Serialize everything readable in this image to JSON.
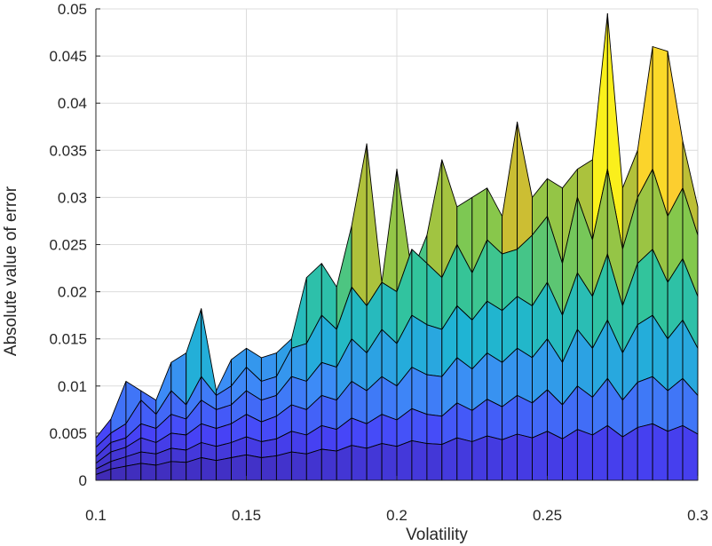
{
  "chart_data": {
    "type": "surface",
    "title": "",
    "xlabel": "Volatility",
    "ylabel": "Absolute value of error",
    "xlim": [
      0.1,
      0.3
    ],
    "ylim": [
      0,
      0.05
    ],
    "x_ticks": [
      0.1,
      0.15,
      0.2,
      0.25,
      0.3
    ],
    "x_tick_labels": [
      "0.1",
      "0.15",
      "0.2",
      "0.25",
      "0.3"
    ],
    "y_ticks": [
      0,
      0.005,
      0.01,
      0.015,
      0.02,
      0.025,
      0.03,
      0.035,
      0.04,
      0.045,
      0.05
    ],
    "y_tick_labels": [
      "0",
      "0.005",
      "0.01",
      "0.015",
      "0.02",
      "0.025",
      "0.03",
      "0.035",
      "0.04",
      "0.045",
      "0.05"
    ],
    "grid": true,
    "colormap": [
      "#3e26a8",
      "#4743f8",
      "#3d8bf7",
      "#1fb4d4",
      "#32c49b",
      "#83c84d",
      "#c6be32",
      "#fdbb3a",
      "#f9fb15"
    ],
    "series": [
      {
        "x": [
          0.1,
          0.105,
          0.11,
          0.115,
          0.12,
          0.125,
          0.13,
          0.135,
          0.14,
          0.145,
          0.15,
          0.155,
          0.16,
          0.165,
          0.17,
          0.175,
          0.18,
          0.185,
          0.19,
          0.195,
          0.2,
          0.205,
          0.21,
          0.215,
          0.22,
          0.225,
          0.23,
          0.235,
          0.24,
          0.245,
          0.25,
          0.255,
          0.26,
          0.265,
          0.27,
          0.275,
          0.28,
          0.285,
          0.29,
          0.295,
          0.3
        ],
        "values": [
          0.0045,
          0.0065,
          0.0105,
          0.0095,
          0.0085,
          0.0125,
          0.0135,
          0.0182,
          0.0095,
          0.0128,
          0.014,
          0.013,
          0.0135,
          0.015,
          0.0215,
          0.023,
          0.0205,
          0.027,
          0.0357,
          0.021,
          0.033,
          0.022,
          0.026,
          0.034,
          0.029,
          0.03,
          0.031,
          0.028,
          0.038,
          0.03,
          0.032,
          0.031,
          0.033,
          0.034,
          0.0495,
          0.031,
          0.035,
          0.046,
          0.0455,
          0.036,
          0.029
        ]
      },
      {
        "x": [
          0.1,
          0.105,
          0.11,
          0.115,
          0.12,
          0.125,
          0.13,
          0.135,
          0.14,
          0.145,
          0.15,
          0.155,
          0.16,
          0.165,
          0.17,
          0.175,
          0.18,
          0.185,
          0.19,
          0.195,
          0.2,
          0.205,
          0.21,
          0.215,
          0.22,
          0.225,
          0.23,
          0.235,
          0.24,
          0.245,
          0.25,
          0.255,
          0.26,
          0.265,
          0.27,
          0.275,
          0.28,
          0.285,
          0.29,
          0.295,
          0.3
        ],
        "values": [
          0.0035,
          0.005,
          0.006,
          0.0085,
          0.007,
          0.0095,
          0.008,
          0.011,
          0.009,
          0.01,
          0.012,
          0.0105,
          0.011,
          0.014,
          0.0145,
          0.0175,
          0.016,
          0.0205,
          0.0185,
          0.021,
          0.02,
          0.0245,
          0.023,
          0.0215,
          0.025,
          0.022,
          0.0255,
          0.024,
          0.0245,
          0.026,
          0.028,
          0.023,
          0.03,
          0.0255,
          0.033,
          0.0245,
          0.03,
          0.033,
          0.028,
          0.031,
          0.026
        ]
      },
      {
        "x": [
          0.1,
          0.105,
          0.11,
          0.115,
          0.12,
          0.125,
          0.13,
          0.135,
          0.14,
          0.145,
          0.15,
          0.155,
          0.16,
          0.165,
          0.17,
          0.175,
          0.18,
          0.185,
          0.19,
          0.195,
          0.2,
          0.205,
          0.21,
          0.215,
          0.22,
          0.225,
          0.23,
          0.235,
          0.24,
          0.245,
          0.25,
          0.255,
          0.26,
          0.265,
          0.27,
          0.275,
          0.28,
          0.285,
          0.29,
          0.295,
          0.3
        ],
        "values": [
          0.0025,
          0.004,
          0.0045,
          0.006,
          0.0055,
          0.007,
          0.0065,
          0.0085,
          0.0075,
          0.008,
          0.0095,
          0.0085,
          0.009,
          0.011,
          0.0105,
          0.0125,
          0.012,
          0.015,
          0.0135,
          0.016,
          0.0145,
          0.0175,
          0.0165,
          0.016,
          0.0185,
          0.017,
          0.019,
          0.018,
          0.0195,
          0.0185,
          0.021,
          0.0175,
          0.022,
          0.0195,
          0.024,
          0.0185,
          0.023,
          0.0245,
          0.021,
          0.0235,
          0.0195
        ]
      },
      {
        "x": [
          0.1,
          0.105,
          0.11,
          0.115,
          0.12,
          0.125,
          0.13,
          0.135,
          0.14,
          0.145,
          0.15,
          0.155,
          0.16,
          0.165,
          0.17,
          0.175,
          0.18,
          0.185,
          0.19,
          0.195,
          0.2,
          0.205,
          0.21,
          0.215,
          0.22,
          0.225,
          0.23,
          0.235,
          0.24,
          0.245,
          0.25,
          0.255,
          0.26,
          0.265,
          0.27,
          0.275,
          0.28,
          0.285,
          0.29,
          0.295,
          0.3
        ],
        "values": [
          0.0018,
          0.003,
          0.0035,
          0.0045,
          0.004,
          0.005,
          0.0048,
          0.006,
          0.0055,
          0.006,
          0.007,
          0.0062,
          0.0068,
          0.008,
          0.0075,
          0.009,
          0.0085,
          0.0105,
          0.0095,
          0.011,
          0.01,
          0.012,
          0.0112,
          0.011,
          0.013,
          0.0118,
          0.0135,
          0.0125,
          0.014,
          0.013,
          0.015,
          0.0125,
          0.016,
          0.014,
          0.017,
          0.0135,
          0.0165,
          0.0175,
          0.015,
          0.017,
          0.014
        ]
      },
      {
        "x": [
          0.1,
          0.105,
          0.11,
          0.115,
          0.12,
          0.125,
          0.13,
          0.135,
          0.14,
          0.145,
          0.15,
          0.155,
          0.16,
          0.165,
          0.17,
          0.175,
          0.18,
          0.185,
          0.19,
          0.195,
          0.2,
          0.205,
          0.21,
          0.215,
          0.22,
          0.225,
          0.23,
          0.235,
          0.24,
          0.245,
          0.25,
          0.255,
          0.26,
          0.265,
          0.27,
          0.275,
          0.28,
          0.285,
          0.29,
          0.295,
          0.3
        ],
        "values": [
          0.0012,
          0.002,
          0.0025,
          0.003,
          0.0028,
          0.0034,
          0.0032,
          0.004,
          0.0036,
          0.004,
          0.0046,
          0.0041,
          0.0044,
          0.0052,
          0.0048,
          0.0058,
          0.0054,
          0.0066,
          0.006,
          0.007,
          0.0064,
          0.0076,
          0.007,
          0.0068,
          0.0082,
          0.0074,
          0.0086,
          0.0078,
          0.009,
          0.0082,
          0.0096,
          0.008,
          0.01,
          0.0088,
          0.0108,
          0.0085,
          0.0104,
          0.011,
          0.0095,
          0.0108,
          0.009
        ]
      },
      {
        "x": [
          0.1,
          0.105,
          0.11,
          0.115,
          0.12,
          0.125,
          0.13,
          0.135,
          0.14,
          0.145,
          0.15,
          0.155,
          0.16,
          0.165,
          0.17,
          0.175,
          0.18,
          0.185,
          0.19,
          0.195,
          0.2,
          0.205,
          0.21,
          0.215,
          0.22,
          0.225,
          0.23,
          0.235,
          0.24,
          0.245,
          0.25,
          0.255,
          0.26,
          0.265,
          0.27,
          0.275,
          0.28,
          0.285,
          0.29,
          0.295,
          0.3
        ],
        "values": [
          0.0006,
          0.0012,
          0.0015,
          0.0018,
          0.0016,
          0.002,
          0.0019,
          0.0024,
          0.0021,
          0.0024,
          0.0027,
          0.0024,
          0.0026,
          0.003,
          0.0028,
          0.0033,
          0.0031,
          0.0037,
          0.0034,
          0.0039,
          0.0036,
          0.0042,
          0.0039,
          0.0038,
          0.0045,
          0.0041,
          0.0047,
          0.0043,
          0.0049,
          0.0045,
          0.0052,
          0.0044,
          0.0054,
          0.0048,
          0.0058,
          0.0046,
          0.0056,
          0.006,
          0.0052,
          0.0058,
          0.0049
        ]
      }
    ]
  }
}
